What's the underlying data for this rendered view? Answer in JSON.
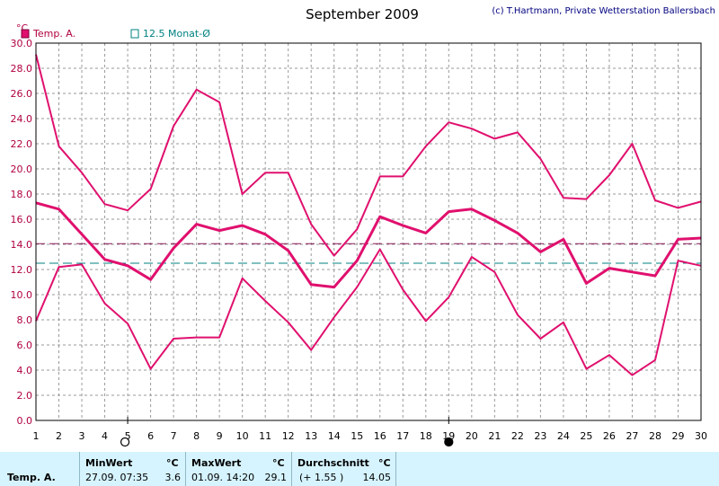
{
  "header": {
    "title": "September 2009",
    "copyright": "(c) T.Hartmann, Private Wetterstation Ballersbach"
  },
  "legend": {
    "series_label": "Temp. A.",
    "mean_label": "12.5 Monat-Ø",
    "series_color": "#e0106e",
    "mean_color": "#008080"
  },
  "moon_markers": [
    {
      "day": 5,
      "phase": "full-moon-icon"
    },
    {
      "day": 19,
      "phase": "new-moon-icon"
    }
  ],
  "chart_data": {
    "type": "line",
    "title": "September 2009",
    "ylabel": "°C",
    "x": [
      1,
      2,
      3,
      4,
      5,
      6,
      7,
      8,
      9,
      10,
      11,
      12,
      13,
      14,
      15,
      16,
      17,
      18,
      19,
      20,
      21,
      22,
      23,
      24,
      25,
      26,
      27,
      28,
      29,
      30
    ],
    "xlim": [
      1,
      30
    ],
    "ylim": [
      0,
      30
    ],
    "yticks": [
      "0.0",
      "2.0",
      "4.0",
      "6.0",
      "8.0",
      "10.0",
      "12.0",
      "14.0",
      "16.0",
      "18.0",
      "20.0",
      "22.0",
      "24.0",
      "26.0",
      "28.0",
      "30.0"
    ],
    "grid": true,
    "series": [
      {
        "values": [
          29.1,
          21.8,
          19.7,
          17.2,
          16.7,
          18.4,
          23.4,
          26.3,
          25.3,
          18.0,
          19.7,
          19.7,
          15.6,
          13.1,
          15.2,
          19.4,
          19.4,
          21.8,
          23.7,
          23.2,
          22.4,
          22.9,
          20.8,
          17.7,
          17.6,
          19.5,
          22.0,
          17.5,
          16.9,
          17.4
        ]
      },
      {
        "values": [
          17.3,
          16.8,
          14.8,
          12.8,
          12.3,
          11.2,
          13.7,
          15.6,
          15.1,
          15.5,
          14.8,
          13.5,
          10.8,
          10.6,
          12.7,
          16.2,
          15.5,
          14.9,
          16.6,
          16.8,
          15.9,
          14.9,
          13.4,
          14.4,
          10.9,
          12.1,
          11.8,
          11.5,
          14.4,
          14.5
        ]
      },
      {
        "values": [
          7.9,
          12.2,
          12.4,
          9.3,
          7.7,
          4.1,
          6.5,
          6.6,
          6.6,
          11.3,
          9.5,
          7.8,
          5.6,
          8.2,
          10.6,
          13.6,
          10.4,
          7.9,
          9.8,
          13.0,
          11.8,
          8.4,
          6.5,
          7.8,
          4.1,
          5.2,
          3.6,
          4.8,
          12.7,
          12.3
        ]
      }
    ],
    "reference_lines": [
      {
        "value": 14.05,
        "color": "#8b1a5b"
      },
      {
        "name": "12.5 Monat-Ø",
        "value": 12.5,
        "color": "#008080"
      }
    ]
  },
  "stats": {
    "row_label": "Temp. A.",
    "min": {
      "label": "MinWert",
      "unit": "°C",
      "when": "27.09.  07:35",
      "value": "3.6"
    },
    "max": {
      "label": "MaxWert",
      "unit": "°C",
      "when": "01.09.  14:20",
      "value": "29.1"
    },
    "avg": {
      "label": "Durchschnitt",
      "unit": "°C",
      "delta": "(+ 1.55 )",
      "value": "14.05"
    }
  }
}
